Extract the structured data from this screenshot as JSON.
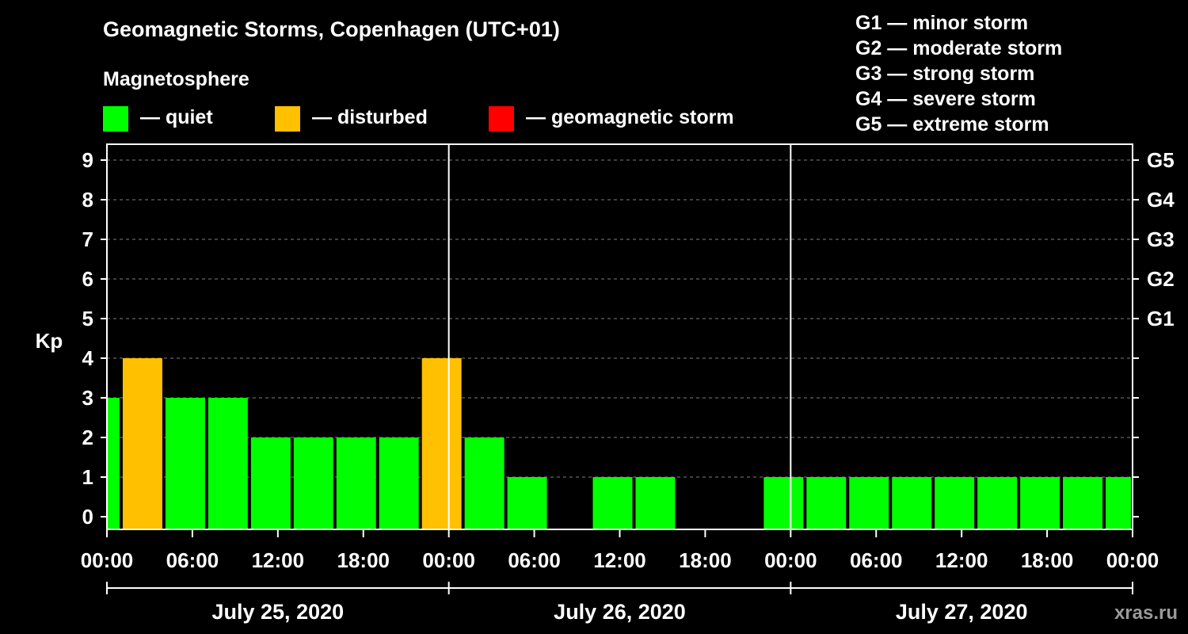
{
  "chart_data": {
    "type": "bar",
    "title": "Geomagnetic Storms, Copenhagen (UTC+01)",
    "subtitle": "Magnetosphere",
    "ylabel": "Kp",
    "ylim": [
      0,
      9
    ],
    "y_ticks": [
      "0",
      "1",
      "2",
      "3",
      "4",
      "5",
      "6",
      "7",
      "8",
      "9"
    ],
    "right_axis_labels": [
      {
        "kp": 5,
        "label": "G1"
      },
      {
        "kp": 6,
        "label": "G2"
      },
      {
        "kp": 7,
        "label": "G3"
      },
      {
        "kp": 8,
        "label": "G4"
      },
      {
        "kp": 9,
        "label": "G5"
      }
    ],
    "x_range_hours": [
      0,
      72
    ],
    "x_ticks": [
      "00:00",
      "06:00",
      "12:00",
      "18:00",
      "00:00",
      "06:00",
      "12:00",
      "18:00",
      "00:00",
      "06:00",
      "12:00",
      "18:00",
      "00:00"
    ],
    "days": [
      "July 25, 2020",
      "July 26, 2020",
      "July 27, 2020"
    ],
    "legend": [
      {
        "label": "— quiet",
        "color": "#00ff00"
      },
      {
        "label": "— disturbed",
        "color": "#ffc000"
      },
      {
        "label": "— geomagnetic storm",
        "color": "#ff0000"
      }
    ],
    "storm_scale": [
      "G1 — minor storm",
      "G2 — moderate storm",
      "G3 — strong storm",
      "G4 — severe storm",
      "G5 — extreme storm"
    ],
    "bars": [
      {
        "start_h": 0,
        "end_h": 1,
        "kp": 3,
        "status": "quiet"
      },
      {
        "start_h": 1,
        "end_h": 4,
        "kp": 4,
        "status": "disturbed"
      },
      {
        "start_h": 4,
        "end_h": 7,
        "kp": 3,
        "status": "quiet"
      },
      {
        "start_h": 7,
        "end_h": 10,
        "kp": 3,
        "status": "quiet"
      },
      {
        "start_h": 10,
        "end_h": 13,
        "kp": 2,
        "status": "quiet"
      },
      {
        "start_h": 13,
        "end_h": 16,
        "kp": 2,
        "status": "quiet"
      },
      {
        "start_h": 16,
        "end_h": 19,
        "kp": 2,
        "status": "quiet"
      },
      {
        "start_h": 19,
        "end_h": 22,
        "kp": 2,
        "status": "quiet"
      },
      {
        "start_h": 22,
        "end_h": 25,
        "kp": 4,
        "status": "disturbed"
      },
      {
        "start_h": 25,
        "end_h": 28,
        "kp": 2,
        "status": "quiet"
      },
      {
        "start_h": 28,
        "end_h": 31,
        "kp": 1,
        "status": "quiet"
      },
      {
        "start_h": 31,
        "end_h": 34,
        "kp": 0,
        "status": "quiet"
      },
      {
        "start_h": 34,
        "end_h": 37,
        "kp": 1,
        "status": "quiet"
      },
      {
        "start_h": 37,
        "end_h": 40,
        "kp": 1,
        "status": "quiet"
      },
      {
        "start_h": 40,
        "end_h": 43,
        "kp": 0,
        "status": "quiet"
      },
      {
        "start_h": 43,
        "end_h": 46,
        "kp": 0,
        "status": "quiet"
      },
      {
        "start_h": 46,
        "end_h": 49,
        "kp": 1,
        "status": "quiet"
      },
      {
        "start_h": 49,
        "end_h": 52,
        "kp": 1,
        "status": "quiet"
      },
      {
        "start_h": 52,
        "end_h": 55,
        "kp": 1,
        "status": "quiet"
      },
      {
        "start_h": 55,
        "end_h": 58,
        "kp": 1,
        "status": "quiet"
      },
      {
        "start_h": 58,
        "end_h": 61,
        "kp": 1,
        "status": "quiet"
      },
      {
        "start_h": 61,
        "end_h": 64,
        "kp": 1,
        "status": "quiet"
      },
      {
        "start_h": 64,
        "end_h": 67,
        "kp": 1,
        "status": "quiet"
      },
      {
        "start_h": 67,
        "end_h": 70,
        "kp": 1,
        "status": "quiet"
      },
      {
        "start_h": 70,
        "end_h": 72,
        "kp": 1,
        "status": "quiet"
      }
    ],
    "status_colors": {
      "quiet": "#00ff00",
      "disturbed": "#ffc000",
      "storm": "#ff0000"
    },
    "watermark": "xras.ru"
  }
}
